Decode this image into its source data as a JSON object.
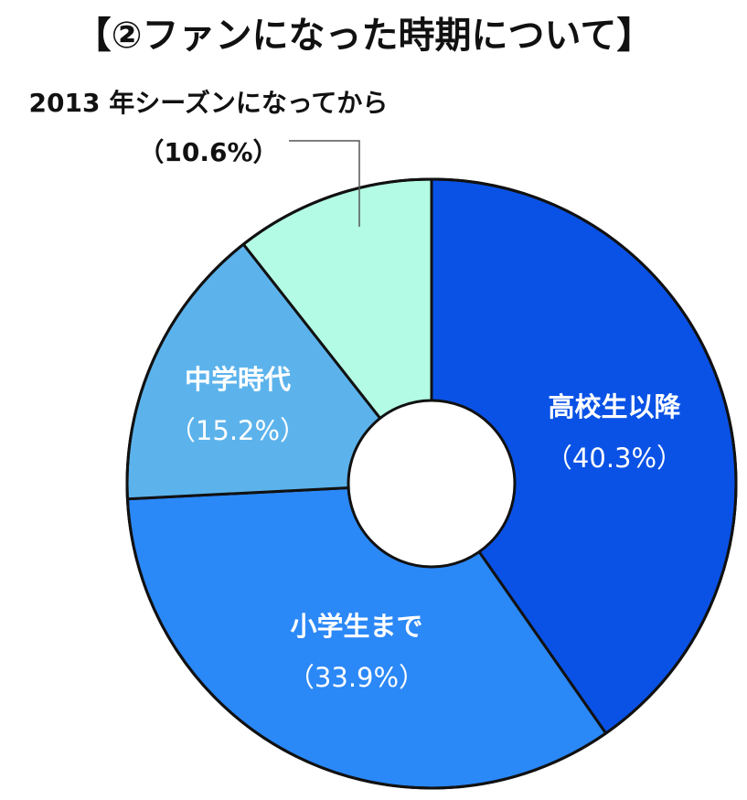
{
  "chart_data": {
    "type": "pie",
    "title": "【②ファンになった時期について】",
    "donut": true,
    "slices": [
      {
        "label": "高校生以降",
        "pct_text": "（40.3%）",
        "value": 40.3,
        "color": "#0a52e6",
        "text_color": "#ffffff"
      },
      {
        "label": "小学生まで",
        "pct_text": "（33.9%）",
        "value": 33.9,
        "color": "#2b88f7",
        "text_color": "#ffffff"
      },
      {
        "label": "中学時代",
        "pct_text": "（15.2%）",
        "value": 15.2,
        "color": "#5cb3ec",
        "text_color": "#ffffff"
      },
      {
        "label": "2013 年シーズンになってから",
        "pct_text": "（10.6%）",
        "value": 10.6,
        "color": "#b3fbe4",
        "text_color": "#111111"
      }
    ]
  }
}
